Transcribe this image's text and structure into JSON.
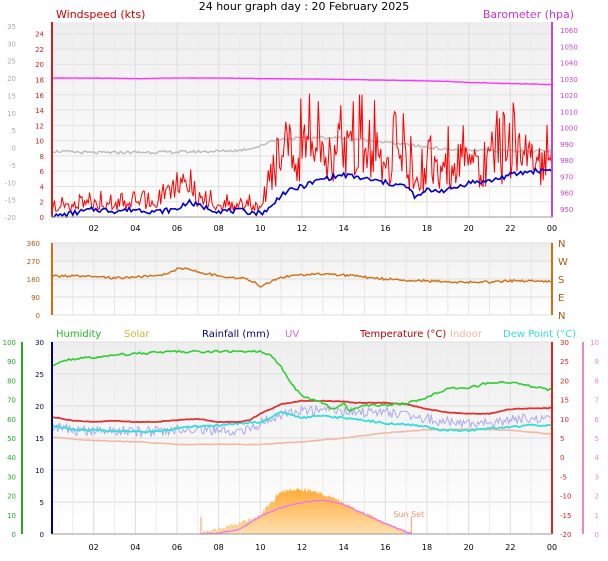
{
  "title": "24 hour graph day : 20 February 2025",
  "chart_data": [
    {
      "type": "line",
      "panel": "wind-barometer",
      "left_axis_label": "Windspeed (kts)",
      "right_axis_label": "Barometer (hpa)",
      "colors": {
        "left_label": "#cc0000",
        "right_label": "#cc33cc",
        "gust": "#ff0000",
        "average": "#0000cc",
        "barometer": "#ff33ff",
        "bar_trace": "#bbbbbb",
        "left_axis": "#cc2222",
        "right_axis": "#cc44cc"
      },
      "ylim_left": [
        0,
        25
      ],
      "yticks_left": [
        "0",
        "2",
        "4",
        "6",
        "8",
        "10",
        "12",
        "14",
        "16",
        "18",
        "20",
        "22",
        "24"
      ],
      "ylim_right": [
        945,
        1065
      ],
      "yticks_right": [
        "950",
        "960",
        "970",
        "980",
        "990",
        "1000",
        "1010",
        "1020",
        "1030",
        "1040",
        "1050",
        "1060"
      ],
      "faint_axis_ticks": [
        "-20",
        "-15",
        "-10",
        "-5",
        "0",
        "5",
        "10",
        "15",
        "20",
        "25",
        "30",
        "35"
      ],
      "x_hours": [
        0,
        24
      ],
      "x_tick_labels": [
        "02",
        "04",
        "06",
        "08",
        "10",
        "12",
        "14",
        "16",
        "18",
        "20",
        "22",
        "00"
      ],
      "grid": true,
      "series": [
        {
          "name": "Barometer (hpa)",
          "x": [
            0,
            2,
            4,
            6,
            8,
            10,
            12,
            14,
            16,
            18,
            19,
            20,
            22,
            24
          ],
          "y": [
            1030.5,
            1030.5,
            1030.2,
            1030.5,
            1030.5,
            1030.2,
            1030,
            1029.6,
            1029.2,
            1028.8,
            1028.4,
            1027.8,
            1027.1,
            1026.5
          ]
        },
        {
          "name": "Temperature trace",
          "x": [
            0,
            2,
            4,
            6,
            8,
            9,
            10,
            10.5,
            11,
            12,
            13,
            14,
            15,
            16,
            17,
            18,
            19,
            20,
            22,
            24
          ],
          "y": [
            985.5,
            984.5,
            984.8,
            985.0,
            985.5,
            986.0,
            988.5,
            992,
            993,
            993.5,
            994,
            993.5,
            992.5,
            991,
            989.5,
            988,
            986.5,
            986,
            985.8,
            985.5
          ]
        },
        {
          "name": "Wind gust",
          "x": [
            0,
            0.5,
            1,
            2,
            3,
            4,
            5,
            5.5,
            6,
            6.5,
            7,
            8,
            9,
            10,
            10.5,
            11,
            11.5,
            12,
            13,
            14,
            15,
            16,
            17,
            17.5,
            18,
            19,
            20,
            21,
            22,
            22.5,
            23,
            23.5,
            24
          ],
          "y": [
            1,
            3,
            2,
            2.5,
            2,
            2.5,
            2,
            4,
            5,
            5,
            3,
            2,
            2,
            2,
            6,
            8,
            9,
            11,
            11,
            11,
            11,
            10,
            9,
            5,
            8,
            8,
            9,
            9,
            10,
            12,
            10,
            9,
            8
          ]
        },
        {
          "name": "Wind average",
          "x": [
            0,
            1,
            2,
            3,
            4,
            5,
            6,
            6.5,
            7,
            8,
            9,
            10,
            10.5,
            11,
            12,
            13,
            14,
            15,
            16,
            17,
            17.5,
            18,
            19,
            20,
            21,
            22,
            23,
            24
          ],
          "y": [
            0,
            0.5,
            1,
            0.8,
            1,
            0.7,
            1,
            2,
            1.5,
            0.8,
            0.8,
            0.5,
            1.2,
            3,
            4,
            5,
            5.5,
            5,
            4.5,
            4,
            2.5,
            3.5,
            3.5,
            4.5,
            4.7,
            5.5,
            6,
            6.2
          ]
        }
      ]
    },
    {
      "type": "line",
      "panel": "wind-direction",
      "left_axis_label": "",
      "right_axis_labels": [
        "N",
        "W",
        "S",
        "E",
        "N"
      ],
      "ylim": [
        0,
        360
      ],
      "yticks": [
        "0",
        "90",
        "180",
        "270",
        "360"
      ],
      "x_hours": [
        0,
        24
      ],
      "colors": {
        "line": "#d07010",
        "right_labels": "#b05a10",
        "axis": "#d07010"
      },
      "series": [
        {
          "name": "Wind direction",
          "x": [
            0,
            1,
            2,
            3,
            4,
            5,
            5.5,
            6,
            6.5,
            7,
            8,
            9,
            9.5,
            10,
            10.5,
            11,
            12,
            13,
            14,
            15,
            16,
            17,
            18,
            19,
            20,
            21,
            22,
            23,
            24
          ],
          "y": [
            195,
            195,
            190,
            185,
            190,
            195,
            205,
            230,
            235,
            215,
            195,
            185,
            175,
            145,
            165,
            190,
            200,
            205,
            200,
            190,
            180,
            175,
            170,
            165,
            165,
            165,
            170,
            170,
            170
          ]
        }
      ]
    },
    {
      "type": "line",
      "panel": "temperature-humidity",
      "legend": [
        "Humidity",
        "Solar",
        "Rainfall (mm)",
        "UV",
        "Temperature (°C)",
        "Indoor",
        "Dew Point (°C)"
      ],
      "legend_colors": [
        "#22bb22",
        "#ccbb33",
        "#000088",
        "#dd66ee",
        "#bb0000",
        "#f0b8a0",
        "#33dddd"
      ],
      "ylim_humidity": [
        0,
        100
      ],
      "yticks_humidity": [
        "0",
        "10",
        "20",
        "30",
        "40",
        "50",
        "60",
        "70",
        "80",
        "90",
        "100"
      ],
      "ylim_rain": [
        0,
        30
      ],
      "yticks_rain": [
        "0",
        "5",
        "10",
        "15",
        "20",
        "25",
        "30"
      ],
      "ylim_temp": [
        -20,
        10
      ],
      "yticks_temp": [
        "-20",
        "-15",
        "-10",
        "-5",
        "0",
        "5",
        "10",
        "15",
        "20",
        "25",
        "30"
      ],
      "yticks_uv": [
        "0",
        "1",
        "2",
        "3",
        "4",
        "5",
        "6",
        "7",
        "8",
        "9",
        "10"
      ],
      "x_tick_labels": [
        "02",
        "04",
        "06",
        "08",
        "10",
        "12",
        "14",
        "16",
        "18",
        "20",
        "22",
        "00"
      ],
      "annotations": [
        "Sun Set"
      ],
      "sunrise_hour": 7.15,
      "sunset_hour": 17.25,
      "colors": {
        "axis_humidity": "#22aa22",
        "axis_rain": "#000088",
        "axis_temp": "#dd2222",
        "axis_uv": "#ee88bb"
      },
      "series": [
        {
          "name": "Humidity",
          "x": [
            0,
            0.5,
            1,
            2,
            3,
            4,
            5,
            6,
            7,
            8,
            9,
            10,
            10.5,
            11,
            11.5,
            12,
            12.5,
            13,
            13.5,
            14,
            14.3,
            15,
            16,
            17,
            18,
            19,
            20,
            21,
            22,
            23,
            24
          ],
          "y": [
            88,
            90,
            91,
            92,
            93,
            94,
            94.5,
            95,
            95,
            95,
            95,
            95,
            93,
            87,
            78,
            72,
            70,
            68,
            65,
            68,
            64,
            67,
            67,
            68,
            71,
            76,
            76,
            79,
            79,
            77,
            75
          ]
        },
        {
          "name": "Temperature (°C)",
          "x": [
            0,
            1,
            2,
            3,
            4,
            5,
            6,
            7,
            8,
            9,
            9.5,
            10,
            10.5,
            11,
            12,
            13,
            14,
            14.5,
            15,
            16,
            17,
            18,
            19,
            20,
            21,
            22,
            23,
            24
          ],
          "y": [
            -1.7,
            -2.3,
            -2.5,
            -2.3,
            -2.5,
            -2.5,
            -2.2,
            -2.0,
            -2.5,
            -2.5,
            -2.2,
            -1.2,
            -0.5,
            0.3,
            0.8,
            0.8,
            0.7,
            0.5,
            0.5,
            0.5,
            0.3,
            -0.5,
            -1.0,
            -1.2,
            -1.2,
            -0.5,
            -0.4,
            -0.3
          ]
        },
        {
          "name": "Dew Point (°C)",
          "x": [
            0,
            1,
            2,
            3,
            4,
            5,
            6,
            7,
            8,
            9,
            10,
            10.5,
            11,
            12,
            13,
            14,
            15,
            16,
            17,
            18,
            18.5,
            19,
            20,
            21,
            22,
            23,
            24
          ],
          "y": [
            -3,
            -3.7,
            -3.8,
            -3.9,
            -3.9,
            -4.0,
            -3.5,
            -3.2,
            -3.0,
            -2.7,
            -2.5,
            -1.8,
            -1.0,
            -1.8,
            -1.5,
            -1.9,
            -2.2,
            -2.7,
            -2.9,
            -3.2,
            -3.7,
            -3.8,
            -3.8,
            -3.5,
            -3.3,
            -3.0,
            -3.0
          ]
        },
        {
          "name": "Indoor",
          "x": [
            0,
            2,
            4,
            6,
            8,
            10,
            12,
            14,
            16,
            18,
            20,
            22,
            24
          ],
          "y": [
            15.1,
            14.6,
            14.4,
            14.0,
            14.0,
            14.0,
            14.4,
            15.0,
            15.8,
            16.3,
            16.4,
            16.2,
            15.6
          ]
        },
        {
          "name": "Solar",
          "x": [
            7.15,
            8,
            9,
            10,
            11,
            11.5,
            12,
            13,
            14,
            15,
            16,
            17.25
          ],
          "y": [
            0,
            2,
            5,
            9,
            21,
            22,
            22,
            20,
            15,
            10,
            5,
            0
          ]
        },
        {
          "name": "UV",
          "x": [
            7.15,
            8,
            9,
            10,
            11,
            12,
            13,
            14,
            15,
            16,
            17.25
          ],
          "y": [
            0,
            0.1,
            0.7,
            2.5,
            3.8,
            4.5,
            4.8,
            4.2,
            2.8,
            1.5,
            0
          ]
        },
        {
          "name": "Rainfall (mm)",
          "x": [
            0,
            24
          ],
          "y": [
            0,
            0
          ]
        }
      ]
    }
  ]
}
